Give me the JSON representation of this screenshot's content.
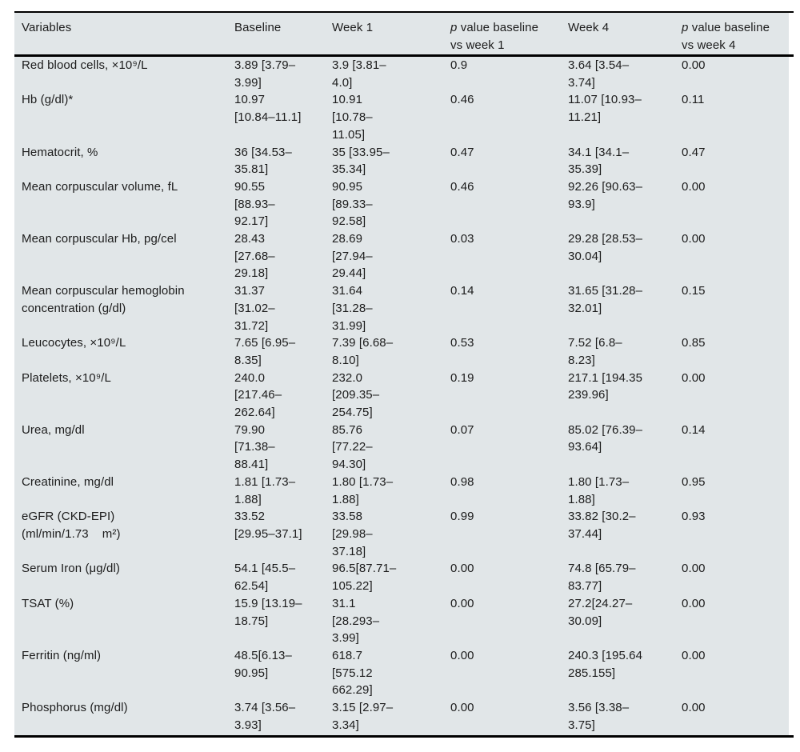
{
  "table": {
    "background_color": "#e1e6e8",
    "rule_color": "#000000",
    "text_color": "#1c1c1c",
    "headers": [
      {
        "italic": "",
        "text": "Variables"
      },
      {
        "italic": "",
        "text": "Baseline"
      },
      {
        "italic": "",
        "text": "Week 1"
      },
      {
        "italic": "p",
        "text": " value baseline\nvs week 1"
      },
      {
        "italic": "",
        "text": "Week 4"
      },
      {
        "italic": "p",
        "text": " value baseline\nvs week 4"
      }
    ],
    "rows": [
      {
        "variable": "Red blood cells, ×10⁹/L",
        "baseline": "3.89 [3.79–\n3.99]",
        "week1": "3.9 [3.81–\n4.0]",
        "p_week1": "0.9",
        "week4": "3.64 [3.54–\n3.74]",
        "p_week4": "0.00"
      },
      {
        "variable": "Hb (g/dl)*",
        "baseline": "10.97\n[10.84–11.1]",
        "week1": "10.91\n[10.78–\n11.05]",
        "p_week1": "0.46",
        "week4": "11.07 [10.93–\n11.21]",
        "p_week4": "0.11"
      },
      {
        "variable": "Hematocrit, %",
        "baseline": "36 [34.53–\n35.81]",
        "week1": "35 [33.95–\n35.34]",
        "p_week1": "0.47",
        "week4": "34.1 [34.1–\n35.39]",
        "p_week4": "0.47"
      },
      {
        "variable": "Mean corpuscular volume, fL",
        "baseline": "90.55\n[88.93–\n92.17]",
        "week1": "90.95\n[89.33–\n92.58]",
        "p_week1": "0.46",
        "week4": "92.26 [90.63–\n93.9]",
        "p_week4": "0.00"
      },
      {
        "variable": "Mean corpuscular Hb, pg/cel",
        "baseline": "28.43\n[27.68–\n29.18]",
        "week1": "28.69\n[27.94–\n29.44]",
        "p_week1": "0.03",
        "week4": "29.28 [28.53–\n30.04]",
        "p_week4": "0.00"
      },
      {
        "variable": "Mean corpuscular hemoglobin\nconcentration (g/dl)",
        "baseline": "31.37\n[31.02–\n31.72]",
        "week1": "31.64\n[31.28–\n31.99]",
        "p_week1": "0.14",
        "week4": "31.65 [31.28–\n32.01]",
        "p_week4": "0.15"
      },
      {
        "variable": "Leucocytes, ×10⁹/L",
        "baseline": "7.65 [6.95–\n8.35]",
        "week1": "7.39 [6.68–\n8.10]",
        "p_week1": "0.53",
        "week4": "7.52 [6.8–\n8.23]",
        "p_week4": "0.85"
      },
      {
        "variable": "Platelets, ×10⁹/L",
        "baseline": "240.0\n[217.46–\n262.64]",
        "week1": "232.0\n[209.35–\n254.75]",
        "p_week1": "0.19",
        "week4": "217.1 [194.35\n239.96]",
        "p_week4": "0.00"
      },
      {
        "variable": "Urea, mg/dl",
        "baseline": "79.90\n[71.38–\n88.41]",
        "week1": "85.76\n[77.22–\n94.30]",
        "p_week1": "0.07",
        "week4": "85.02 [76.39–\n93.64]",
        "p_week4": "0.14"
      },
      {
        "variable": "Creatinine, mg/dl",
        "baseline": "1.81 [1.73–\n1.88]",
        "week1": "1.80 [1.73–\n1.88]",
        "p_week1": "0.98",
        "week4": "1.80 [1.73–\n1.88]",
        "p_week4": "0.95"
      },
      {
        "variable": "eGFR (CKD-EPI)\n(ml/min/1.73    m²)",
        "baseline": "33.52\n[29.95–37.1]",
        "week1": "33.58\n[29.98–\n37.18]",
        "p_week1": "0.99",
        "week4": "33.82 [30.2–\n37.44]",
        "p_week4": "0.93"
      },
      {
        "variable": "Serum Iron (μg/dl)",
        "baseline": "54.1 [45.5–\n62.54]",
        "week1": "96.5[87.71–\n105.22]",
        "p_week1": "0.00",
        "week4": "74.8 [65.79–\n83.77]",
        "p_week4": "0.00"
      },
      {
        "variable": "TSAT (%)",
        "baseline": "15.9 [13.19–\n18.75]",
        "week1": "31.1\n[28.293–\n3.99]",
        "p_week1": "0.00",
        "week4": "27.2[24.27–\n30.09]",
        "p_week4": "0.00"
      },
      {
        "variable": "Ferritin (ng/ml)",
        "baseline": "48.5[6.13–\n90.95]",
        "week1": "618.7\n[575.12\n662.29]",
        "p_week1": "0.00",
        "week4": "240.3 [195.64\n285.155]",
        "p_week4": "0.00"
      },
      {
        "variable": "Phosphorus (mg/dl)",
        "baseline": "3.74 [3.56–\n3.93]",
        "week1": "3.15 [2.97–\n3.34]",
        "p_week1": "0.00",
        "week4": "3.56 [3.38–\n3.75]",
        "p_week4": "0.00"
      }
    ]
  }
}
